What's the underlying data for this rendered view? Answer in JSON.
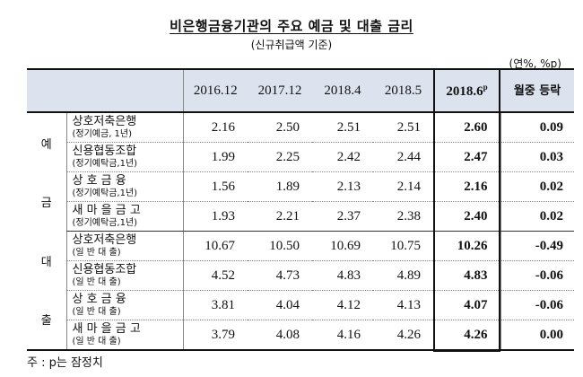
{
  "title": "비은행금융기관의 주요 예금 및 대출 금리",
  "subtitle": "(신규취급액 기준)",
  "unit": "(연%, %p)",
  "columns": {
    "c1": "2016.12",
    "c2": "2017.12",
    "c3": "2018.4",
    "c4": "2018.5",
    "c5": "2018.6",
    "c5_sup": "p",
    "change": "월중 등락"
  },
  "groups": {
    "deposit": {
      "char1": "예",
      "char2": "금"
    },
    "loan": {
      "char1": "대",
      "char2": "출"
    }
  },
  "rows": [
    {
      "name": "상호저축은행",
      "sub": "(정기예금, 1년)",
      "v1": "2.16",
      "v2": "2.50",
      "v3": "2.51",
      "v4": "2.51",
      "v5": "2.60",
      "chg": "0.09"
    },
    {
      "name": "신용협동조합",
      "sub": "(정기예탁금,1년)",
      "v1": "1.99",
      "v2": "2.25",
      "v3": "2.42",
      "v4": "2.44",
      "v5": "2.47",
      "chg": "0.03"
    },
    {
      "name": "상 호 금 융",
      "sub": "(정기예탁금,1년)",
      "v1": "1.56",
      "v2": "1.89",
      "v3": "2.13",
      "v4": "2.14",
      "v5": "2.16",
      "chg": "0.02"
    },
    {
      "name": "새 마 을 금 고",
      "sub": "(정기예탁금,1년)",
      "v1": "1.93",
      "v2": "2.21",
      "v3": "2.37",
      "v4": "2.38",
      "v5": "2.40",
      "chg": "0.02"
    },
    {
      "name": "상호저축은행",
      "sub": "(일 반 대 출)",
      "v1": "10.67",
      "v2": "10.50",
      "v3": "10.69",
      "v4": "10.75",
      "v5": "10.26",
      "chg": "-0.49"
    },
    {
      "name": "신용협동조합",
      "sub": "(일 반 대 출)",
      "v1": "4.52",
      "v2": "4.73",
      "v3": "4.83",
      "v4": "4.89",
      "v5": "4.83",
      "chg": "-0.06"
    },
    {
      "name": "상 호 금 융",
      "sub": "(일 반 대 출)",
      "v1": "3.81",
      "v2": "4.04",
      "v3": "4.12",
      "v4": "4.13",
      "v5": "4.07",
      "chg": "-0.06"
    },
    {
      "name": "새 마 을 금 고",
      "sub": "(일 반 대 출)",
      "v1": "3.79",
      "v2": "4.08",
      "v3": "4.16",
      "v4": "4.26",
      "v5": "4.26",
      "chg": "0.00"
    }
  ],
  "note": "주 : p는 잠정치"
}
